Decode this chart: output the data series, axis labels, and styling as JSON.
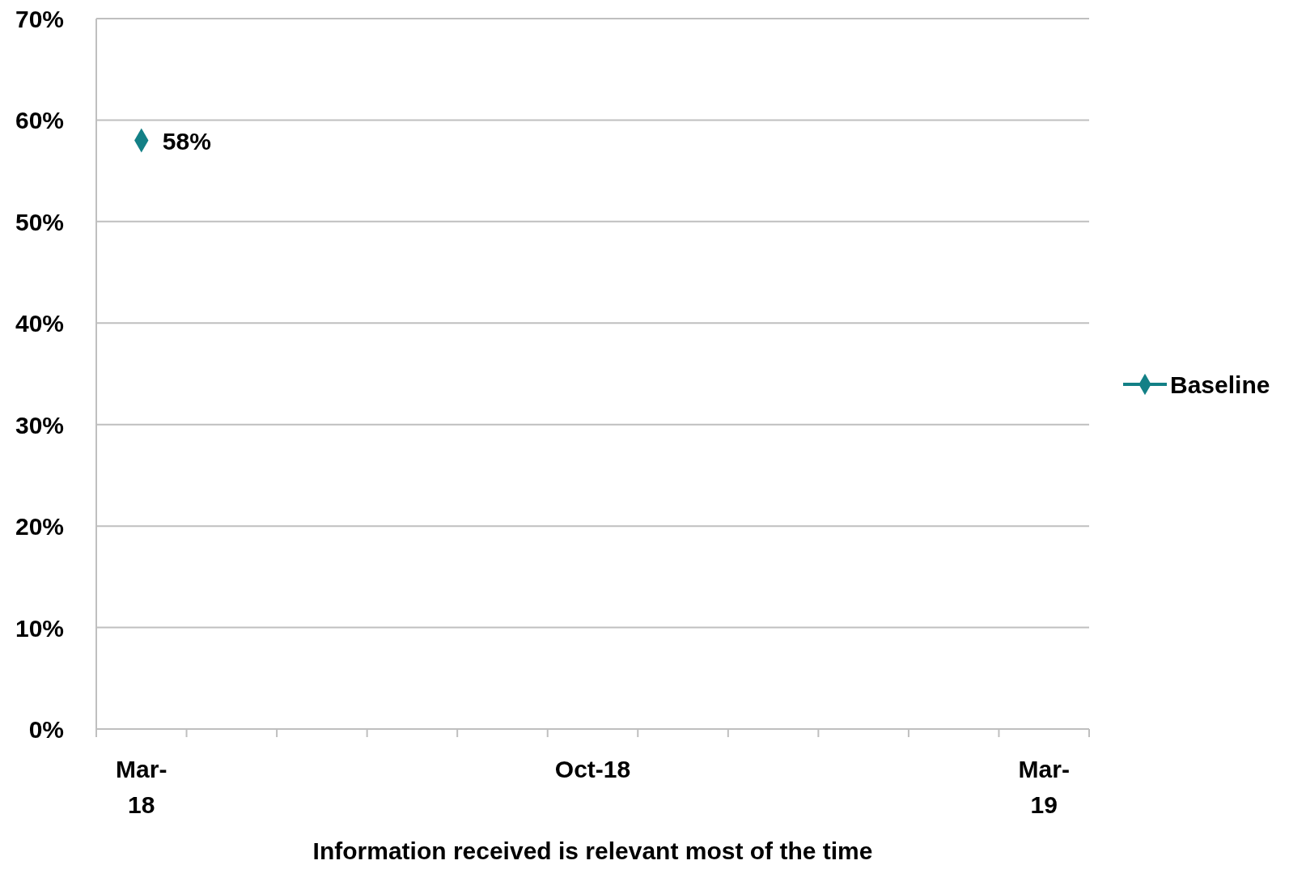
{
  "chart_data": {
    "type": "line",
    "xlabel": "Information received is relevant most of the time",
    "categories": [
      "Mar-18",
      null,
      null,
      null,
      null,
      "Oct-18",
      null,
      null,
      null,
      null,
      "Mar-19"
    ],
    "series": [
      {
        "name": "Baseline",
        "color": "#138086",
        "values": [
          58,
          null,
          null,
          null,
          null,
          null,
          null,
          null,
          null,
          null,
          null
        ],
        "value_labels": [
          "58%",
          null,
          null,
          null,
          null,
          null,
          null,
          null,
          null,
          null,
          null
        ]
      }
    ],
    "ylim": [
      0,
      70
    ],
    "yticks": [
      {
        "value": 0,
        "label": "0%"
      },
      {
        "value": 10,
        "label": "10%"
      },
      {
        "value": 20,
        "label": "20%"
      },
      {
        "value": 30,
        "label": "30%"
      },
      {
        "value": 40,
        "label": "40%"
      },
      {
        "value": 50,
        "label": "50%"
      },
      {
        "value": 60,
        "label": "60%"
      },
      {
        "value": 70,
        "label": "70%"
      }
    ],
    "grid": "y",
    "legend": "right",
    "marker": "diamond",
    "line_style": "solid"
  }
}
